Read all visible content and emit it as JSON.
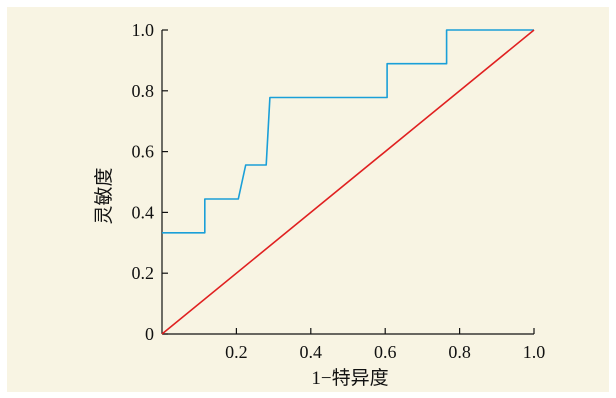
{
  "chart_data": {
    "type": "line",
    "title": "",
    "xlabel": "1−特异度",
    "ylabel": "灵敏度",
    "xlim": [
      0,
      1
    ],
    "ylim": [
      0,
      1
    ],
    "x_ticks": [
      "0.2",
      "0.4",
      "0.6",
      "0.8",
      "1.0"
    ],
    "y_ticks": [
      "0",
      "0.2",
      "0.4",
      "0.6",
      "0.8",
      "1.0"
    ],
    "grid": false,
    "legend": "none",
    "series": [
      {
        "color": "#1a9fd8",
        "x": [
          0,
          0.115,
          0.115,
          0.205,
          0.215,
          0.225,
          0.28,
          0.29,
          0.605,
          0.605,
          0.765,
          0.765,
          1.0
        ],
        "y": [
          0.333,
          0.333,
          0.444,
          0.444,
          0.5,
          0.556,
          0.556,
          0.778,
          0.778,
          0.889,
          0.889,
          1.0,
          1.0
        ]
      },
      {
        "color": "#e02020",
        "x": [
          0,
          1
        ],
        "y": [
          0,
          1
        ]
      }
    ]
  }
}
